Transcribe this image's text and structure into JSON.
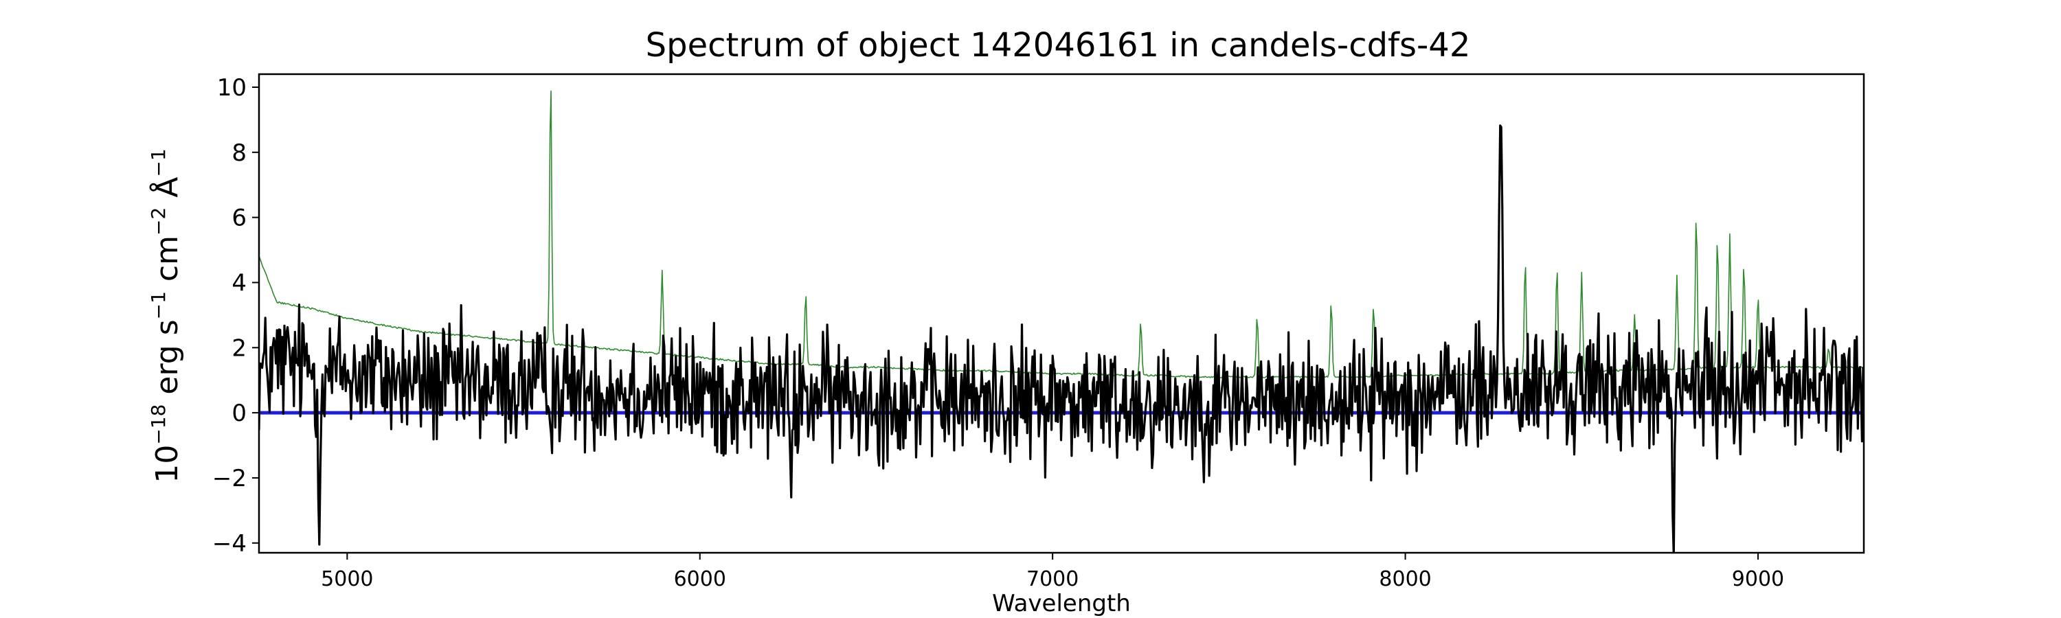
{
  "chart_data": {
    "type": "line",
    "title": "Spectrum of object 142046161 in candels-cdfs-42",
    "xlabel": "Wavelength",
    "ylabel": {
      "base": "10",
      "exp": "−18",
      "erg": "erg s",
      "s_exp": "−1",
      "cm": "cm",
      "cm_exp": "−2",
      "ang": "Å",
      "ang_exp": "−1"
    },
    "xlim": [
      4750,
      9300
    ],
    "ylim": [
      -4.3,
      10.4
    ],
    "xticks": [
      5000,
      6000,
      7000,
      8000,
      9000
    ],
    "yticks": [
      -4,
      -2,
      0,
      2,
      4,
      6,
      8,
      10
    ],
    "grid": false,
    "series": [
      {
        "role": "flux",
        "color": "#000000",
        "style": "noisy",
        "x": [
          4750,
          4800,
          4900,
          5000,
          5100,
          5200,
          5300,
          5400,
          5500,
          5600,
          5700,
          5800,
          5900,
          6000,
          6100,
          6200,
          6300,
          6400,
          6500,
          6600,
          6700,
          6800,
          6900,
          7000,
          7100,
          7200,
          7300,
          7400,
          7500,
          7600,
          7700,
          7800,
          7900,
          8000,
          8100,
          8200,
          8300,
          8400,
          8500,
          8600,
          8700,
          8800,
          8900,
          9000,
          9100,
          9200,
          9300
        ],
        "y": [
          1.2,
          1.5,
          1.4,
          1.2,
          1.1,
          0.9,
          0.9,
          0.8,
          0.8,
          0.8,
          0.8,
          0.7,
          0.7,
          0.6,
          0.5,
          0.5,
          0.5,
          0.5,
          0.5,
          0.4,
          0.4,
          0.4,
          0.4,
          0.4,
          0.35,
          0.3,
          0.3,
          0.3,
          0.35,
          0.35,
          0.35,
          0.4,
          0.45,
          0.5,
          0.55,
          0.6,
          0.65,
          0.7,
          0.75,
          0.8,
          0.8,
          0.8,
          0.85,
          0.9,
          0.85,
          0.8,
          0.8
        ],
        "features": [
          {
            "x": 8270,
            "y": 9.7
          },
          {
            "x": 8760,
            "y": -3.7
          },
          {
            "x": 6260,
            "y": -2.1
          },
          {
            "x": 4920,
            "y": -2.0
          },
          {
            "x": 9040,
            "y": 3.5
          }
        ]
      },
      {
        "role": "sky",
        "color": "#2e8b2e",
        "style": "smooth",
        "x": [
          4750,
          4800,
          4900,
          5000,
          5100,
          5200,
          5300,
          5400,
          5500,
          5600,
          5700,
          5800,
          5900,
          6000,
          6100,
          6200,
          6300,
          6400,
          6500,
          6600,
          6700,
          6800,
          6900,
          7000,
          7100,
          7200,
          7300,
          7400,
          7500,
          7600,
          7700,
          7800,
          7900,
          8000,
          8100,
          8200,
          8300,
          8400,
          8500,
          8600,
          8700,
          8800,
          8900,
          9000,
          9100,
          9200,
          9300
        ],
        "y": [
          4.8,
          3.4,
          3.2,
          2.9,
          2.7,
          2.5,
          2.4,
          2.3,
          2.2,
          2.1,
          2.0,
          1.9,
          1.8,
          1.7,
          1.6,
          1.5,
          1.5,
          1.4,
          1.4,
          1.35,
          1.3,
          1.3,
          1.25,
          1.2,
          1.2,
          1.15,
          1.15,
          1.1,
          1.1,
          1.1,
          1.1,
          1.1,
          1.1,
          1.15,
          1.15,
          1.2,
          1.2,
          1.2,
          1.25,
          1.3,
          1.3,
          1.35,
          1.4,
          1.4,
          1.4,
          1.4,
          1.4
        ],
        "features": [
          {
            "x": 5577,
            "y": 10.4
          },
          {
            "x": 5893,
            "y": 4.4
          },
          {
            "x": 6300,
            "y": 3.7
          },
          {
            "x": 7250,
            "y": 2.8
          },
          {
            "x": 7580,
            "y": 3.0
          },
          {
            "x": 7790,
            "y": 3.4
          },
          {
            "x": 7910,
            "y": 3.3
          },
          {
            "x": 8340,
            "y": 4.7
          },
          {
            "x": 8430,
            "y": 4.5
          },
          {
            "x": 8500,
            "y": 4.3
          },
          {
            "x": 8650,
            "y": 3.0
          },
          {
            "x": 8770,
            "y": 4.2
          },
          {
            "x": 8825,
            "y": 6.1
          },
          {
            "x": 8885,
            "y": 5.4
          },
          {
            "x": 8920,
            "y": 5.5
          },
          {
            "x": 8960,
            "y": 4.6
          },
          {
            "x": 9000,
            "y": 3.6
          },
          {
            "x": 9200,
            "y": 2.0
          }
        ]
      },
      {
        "role": "zero",
        "color": "#1f1fd0",
        "style": "flat",
        "x": [
          4750,
          9300
        ],
        "y": [
          0,
          0
        ]
      }
    ]
  }
}
